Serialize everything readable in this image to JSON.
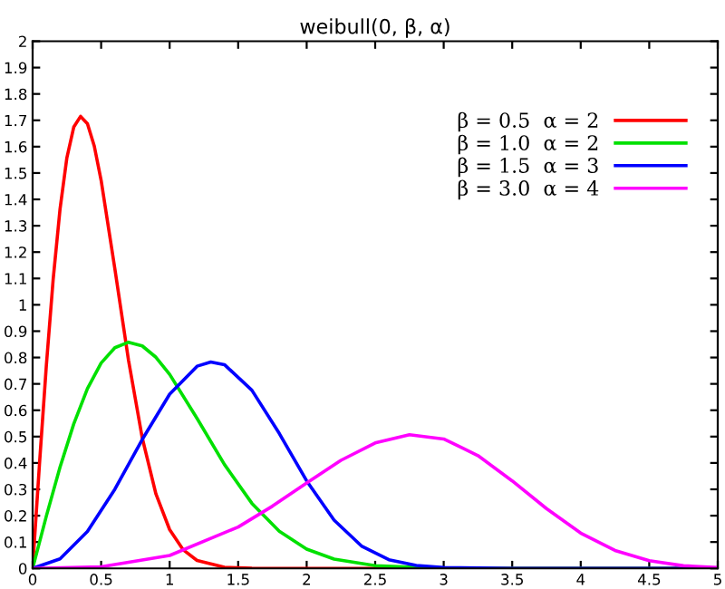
{
  "chart_data": {
    "type": "line",
    "title": "weibull(0, β, α)",
    "xlim": [
      0,
      5
    ],
    "ylim": [
      0,
      2
    ],
    "xticks": [
      0,
      0.5,
      1,
      1.5,
      2,
      2.5,
      3,
      3.5,
      4,
      4.5,
      5
    ],
    "yticks": [
      0,
      0.1,
      0.2,
      0.3,
      0.4,
      0.5,
      0.6,
      0.7,
      0.8,
      0.9,
      1,
      1.1,
      1.2,
      1.3,
      1.4,
      1.5,
      1.6,
      1.7,
      1.8,
      1.9,
      2
    ],
    "grid": false,
    "legend": "top right",
    "marker": "none",
    "line_style": "solid",
    "series": [
      {
        "name": "β = 0.5  α = 2",
        "color": "#ff0000",
        "x": [
          0,
          0.05,
          0.1,
          0.15,
          0.2,
          0.25,
          0.3,
          0.35,
          0.4,
          0.45,
          0.5,
          0.6,
          0.7,
          0.8,
          0.9,
          1.0,
          1.1,
          1.2,
          1.4,
          1.6,
          2,
          5
        ],
        "values": [
          0,
          0.396,
          0.769,
          1.097,
          1.363,
          1.558,
          1.674,
          1.715,
          1.687,
          1.602,
          1.472,
          1.137,
          0.789,
          0.495,
          0.282,
          0.147,
          0.07,
          0.03,
          0.004,
          0.001,
          0,
          0
        ]
      },
      {
        "name": "β = 1.0  α = 2",
        "color": "#00e000",
        "x": [
          0,
          0.1,
          0.2,
          0.3,
          0.4,
          0.5,
          0.6,
          0.7,
          0.8,
          0.9,
          1.0,
          1.2,
          1.4,
          1.6,
          1.8,
          2.0,
          2.2,
          2.5,
          3,
          5
        ],
        "values": [
          0,
          0.198,
          0.384,
          0.548,
          0.682,
          0.779,
          0.837,
          0.858,
          0.844,
          0.801,
          0.736,
          0.569,
          0.394,
          0.247,
          0.141,
          0.073,
          0.035,
          0.01,
          0,
          0
        ]
      },
      {
        "name": "β = 1.5  α = 3",
        "color": "#0000ff",
        "x": [
          0,
          0.2,
          0.4,
          0.6,
          0.8,
          1.0,
          1.2,
          1.3,
          1.4,
          1.6,
          1.8,
          2.0,
          2.2,
          2.4,
          2.6,
          2.8,
          3.0,
          3.5,
          5
        ],
        "values": [
          0,
          0.036,
          0.14,
          0.3,
          0.489,
          0.661,
          0.767,
          0.783,
          0.773,
          0.676,
          0.512,
          0.332,
          0.183,
          0.085,
          0.033,
          0.011,
          0.003,
          0,
          0
        ]
      },
      {
        "name": "β = 3.0  α = 4",
        "color": "#ff00ff",
        "x": [
          0,
          0.5,
          1.0,
          1.5,
          1.75,
          2.0,
          2.25,
          2.5,
          2.75,
          3.0,
          3.25,
          3.5,
          3.75,
          4.0,
          4.25,
          4.5,
          4.75,
          5.0
        ],
        "values": [
          0,
          0.006,
          0.049,
          0.157,
          0.236,
          0.324,
          0.41,
          0.476,
          0.507,
          0.491,
          0.428,
          0.332,
          0.227,
          0.134,
          0.068,
          0.029,
          0.01,
          0.003
        ]
      }
    ]
  }
}
